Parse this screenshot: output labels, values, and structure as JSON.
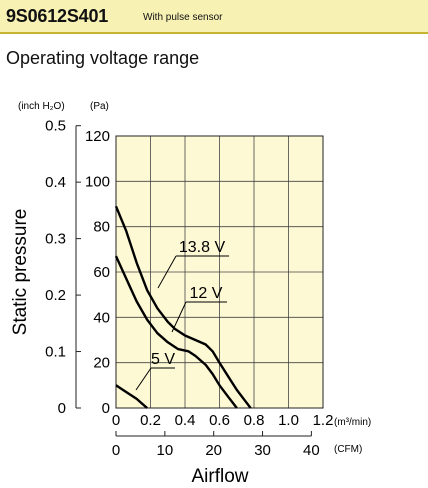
{
  "header": {
    "model": "9S0612S401",
    "feature": "With pulse sensor",
    "background": "#f7f1b4"
  },
  "subtitle": "Operating voltage range",
  "chart_data": {
    "type": "line",
    "x": {
      "label": "Airflow",
      "primary_unit": "(m³/min)",
      "range": [
        0,
        1.2
      ],
      "ticks": [
        "0",
        "0.2",
        "0.4",
        "0.6",
        "0.8",
        "1.0",
        "1.2"
      ],
      "secondary_unit": "(CFM)",
      "secondary_ticks": [
        "0",
        "10",
        "20",
        "30",
        "40"
      ],
      "secondary_values": [
        0,
        10,
        20,
        30,
        40
      ]
    },
    "y": {
      "label": "Static pressure",
      "primary_unit": "(Pa)",
      "range": [
        0,
        120
      ],
      "ticks": [
        "0",
        "20",
        "40",
        "60",
        "80",
        "100",
        "120"
      ],
      "secondary_unit": "(inch H₂O)",
      "secondary_ticks": [
        "0",
        "0.1",
        "0.2",
        "0.3",
        "0.4",
        "0.5"
      ],
      "secondary_values": [
        0,
        0.1,
        0.2,
        0.3,
        0.4,
        0.5
      ]
    },
    "grid": true,
    "plot_background": "#fdf9d5",
    "series": [
      {
        "name": "13.8 V",
        "points": [
          [
            0,
            89
          ],
          [
            0.06,
            78
          ],
          [
            0.12,
            64
          ],
          [
            0.18,
            52
          ],
          [
            0.24,
            44
          ],
          [
            0.3,
            38
          ],
          [
            0.34,
            35
          ],
          [
            0.4,
            32
          ],
          [
            0.46,
            30
          ],
          [
            0.52,
            28
          ],
          [
            0.56,
            25
          ],
          [
            0.6,
            20
          ],
          [
            0.65,
            14
          ],
          [
            0.7,
            8
          ],
          [
            0.75,
            3
          ],
          [
            0.78,
            0
          ]
        ]
      },
      {
        "name": "12 V",
        "points": [
          [
            0,
            67
          ],
          [
            0.06,
            57
          ],
          [
            0.12,
            47
          ],
          [
            0.18,
            39
          ],
          [
            0.24,
            33
          ],
          [
            0.3,
            29
          ],
          [
            0.36,
            26
          ],
          [
            0.42,
            25
          ],
          [
            0.46,
            23
          ],
          [
            0.52,
            19
          ],
          [
            0.56,
            15
          ],
          [
            0.6,
            10
          ],
          [
            0.65,
            5
          ],
          [
            0.7,
            0
          ]
        ]
      },
      {
        "name": "5 V",
        "points": [
          [
            0,
            10
          ],
          [
            0.04,
            8
          ],
          [
            0.08,
            6
          ],
          [
            0.12,
            4
          ],
          [
            0.15,
            2
          ],
          [
            0.18,
            0
          ]
        ]
      }
    ],
    "annotations": [
      "13.8 V",
      "12 V",
      "5 V"
    ]
  }
}
